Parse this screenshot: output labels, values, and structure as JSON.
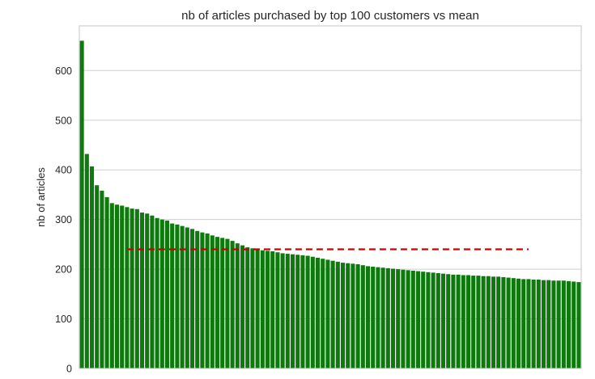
{
  "chart_data": {
    "type": "bar",
    "title": "nb of articles purchased by top 100 customers vs mean",
    "xlabel": "",
    "ylabel": "nb of articles",
    "ylim": [
      0,
      690
    ],
    "yticks": [
      0,
      100,
      200,
      300,
      400,
      500,
      600
    ],
    "grid": true,
    "bar_color": "#0e7a0e",
    "mean_line": {
      "value": 240,
      "color": "#cc0000",
      "style": "dashed",
      "from_bar_index": 9,
      "to_bar_index": 89
    },
    "values": [
      660,
      432,
      407,
      369,
      358,
      345,
      333,
      330,
      328,
      325,
      322,
      321,
      314,
      312,
      308,
      303,
      300,
      298,
      292,
      290,
      287,
      284,
      281,
      277,
      274,
      272,
      268,
      265,
      263,
      261,
      257,
      252,
      248,
      244,
      242,
      240,
      238,
      237,
      236,
      234,
      232,
      231,
      230,
      229,
      228,
      227,
      225,
      223,
      221,
      219,
      217,
      215,
      213,
      212,
      211,
      210,
      208,
      206,
      205,
      204,
      203,
      202,
      201,
      200,
      199,
      198,
      197,
      196,
      195,
      194,
      193,
      192,
      191,
      190,
      189,
      189,
      188,
      188,
      187,
      187,
      186,
      186,
      185,
      185,
      184,
      183,
      182,
      181,
      180,
      180,
      179,
      179,
      178,
      178,
      177,
      177,
      177,
      176,
      175,
      174
    ]
  }
}
